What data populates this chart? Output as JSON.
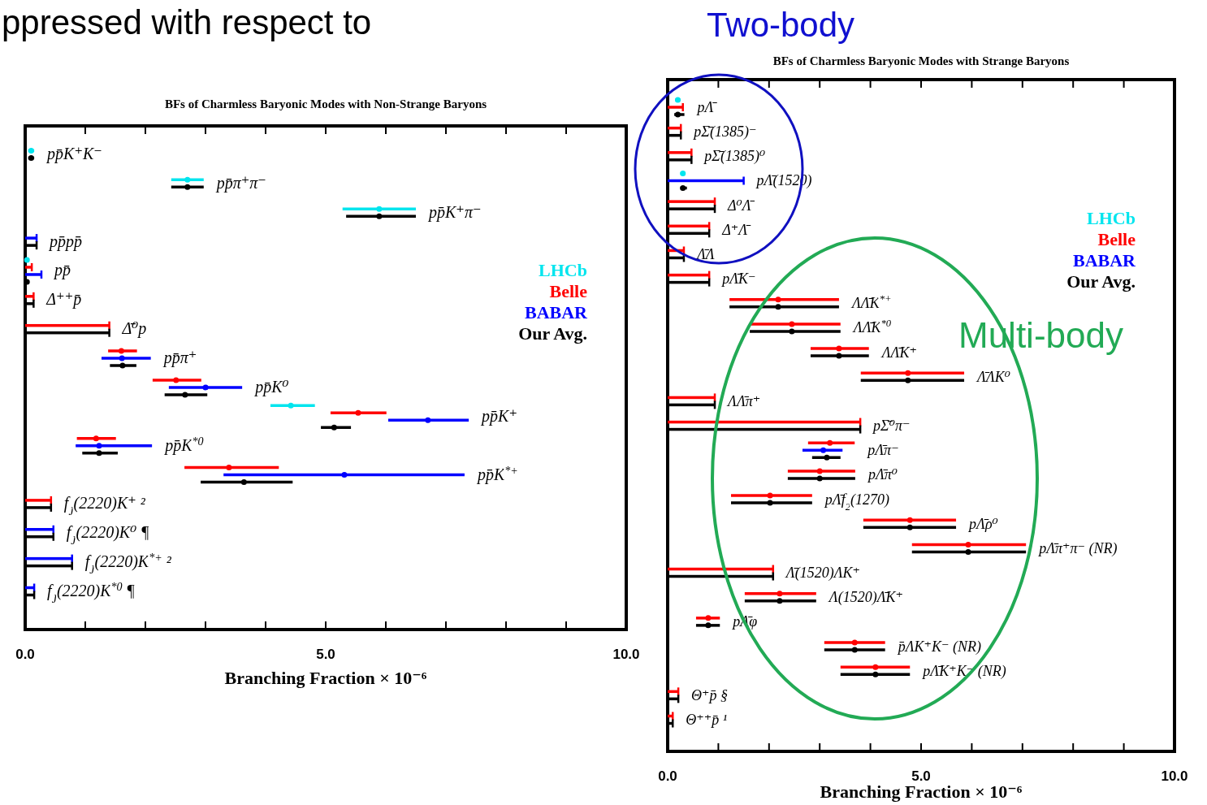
{
  "chart_data": [
    {
      "type": "scatter",
      "orientation": "horizontal",
      "title": "BFs of Charmless Baryonic Modes with Non-Strange Baryons",
      "xlabel": "Branching Fraction × 10⁻⁶",
      "annotations": [
        "ppressed with respect to"
      ],
      "legend": "right",
      "tick_labels": "x",
      "xlim": [
        0,
        10
      ],
      "xticks": [
        {
          "value": 0,
          "label": "0.0"
        },
        {
          "value": 1,
          "label": null
        },
        {
          "value": 2,
          "label": null
        },
        {
          "value": 3,
          "label": null
        },
        {
          "value": 4,
          "label": null
        },
        {
          "value": 5,
          "label": "5.0"
        },
        {
          "value": 6,
          "label": null
        },
        {
          "value": 7,
          "label": null
        },
        {
          "value": 8,
          "label": null
        },
        {
          "value": 9,
          "label": null
        },
        {
          "value": 10,
          "label": "10.0"
        }
      ],
      "categories": [
        "pp̄K⁺K⁻",
        "pp̄π⁺π⁻",
        "pp̄K⁺π⁻",
        "pp̄pp̄",
        "pp̄",
        "Δ⁺⁺p̄",
        "Δ̄⁰p",
        "pp̄π⁺",
        "pp̄K⁰",
        "pp̄K⁺",
        "pp̄K$^{*0}$",
        "pp̄K$^{*+}$",
        "f$_{J}$(2220)K⁺ ²",
        "f$_{J}$(2220)K⁰ ¶",
        "f$_{J}$(2220)K$^{*+}$ ²",
        "f$_{J}$(2220)K$^{*0}$ ¶"
      ],
      "series": [
        {
          "name": "LHCb",
          "color": "#00e5ee",
          "values": [
            0.1,
            2.7,
            5.89,
            null,
            0.03,
            null,
            null,
            null,
            null,
            4.42,
            null,
            null,
            null,
            null,
            null,
            null
          ],
          "errors": [
            [
              0.05,
              0.15
            ],
            [
              2.43,
              2.97
            ],
            [
              5.28,
              6.5
            ],
            null,
            [
              0.01,
              0.05
            ],
            null,
            null,
            null,
            null,
            [
              4.08,
              4.82
            ],
            null,
            null,
            null,
            null,
            null,
            null
          ]
        },
        {
          "name": "Belle",
          "color": "#ff0000",
          "values": [
            null,
            null,
            null,
            null,
            null,
            null,
            null,
            1.6,
            2.51,
            5.54,
            1.18,
            3.39,
            null,
            null,
            null,
            null
          ],
          "errors": [
            null,
            null,
            null,
            null,
            null,
            null,
            null,
            [
              1.38,
              1.86
            ],
            [
              2.12,
              2.93
            ],
            [
              5.08,
              6.01
            ],
            [
              0.86,
              1.51
            ],
            [
              2.65,
              4.22
            ],
            null,
            null,
            null,
            null
          ]
        },
        {
          "type": "bar",
          "color": "#ff0000",
          "values": [
            null,
            null,
            null,
            null,
            0.11,
            0.14,
            1.4,
            null,
            null,
            null,
            null,
            null,
            0.43,
            null,
            null,
            null
          ]
        },
        {
          "name": "BABAR",
          "color": "#0000ff",
          "values": [
            null,
            null,
            null,
            null,
            null,
            null,
            null,
            1.61,
            3.0,
            6.7,
            1.23,
            5.31,
            null,
            null,
            null,
            null
          ],
          "errors": [
            null,
            null,
            null,
            null,
            null,
            null,
            null,
            [
              1.27,
              2.09
            ],
            [
              2.39,
              3.61
            ],
            [
              6.04,
              7.38
            ],
            [
              0.84,
              2.11
            ],
            [
              3.3,
              7.31
            ],
            null,
            null,
            null,
            null
          ]
        },
        {
          "type": "bar",
          "color": "#0000ff",
          "values": [
            null,
            null,
            null,
            0.19,
            0.27,
            null,
            null,
            null,
            null,
            null,
            null,
            null,
            null,
            0.47,
            0.78,
            0.15
          ]
        },
        {
          "name": "Our Avg.",
          "color": "#000000",
          "values": [
            0.1,
            2.7,
            5.89,
            null,
            0.03,
            null,
            null,
            1.62,
            2.66,
            5.14,
            1.23,
            3.64,
            null,
            null,
            null,
            null
          ],
          "errors": [
            [
              0.05,
              0.15
            ],
            [
              2.43,
              2.97
            ],
            [
              5.34,
              6.5
            ],
            null,
            [
              0.01,
              0.05
            ],
            null,
            null,
            [
              1.41,
              1.85
            ],
            [
              2.32,
              3.03
            ],
            [
              4.92,
              5.42
            ],
            [
              0.95,
              1.54
            ],
            [
              2.92,
              4.45
            ],
            null,
            null,
            null,
            null
          ]
        },
        {
          "type": "bar",
          "color": "#000000",
          "values": [
            null,
            null,
            null,
            0.19,
            null,
            0.14,
            1.4,
            null,
            null,
            null,
            null,
            null,
            0.43,
            0.47,
            0.78,
            0.15
          ]
        }
      ]
    },
    {
      "type": "scatter",
      "orientation": "horizontal",
      "title": "BFs of Charmless Baryonic Modes with Strange Baryons",
      "xlabel": "Branching Fraction × 10⁻⁶",
      "annotations": [
        "Two-body",
        "Multi-body"
      ],
      "legend": "right",
      "tick_labels": "x",
      "xlim": [
        0,
        10
      ],
      "xticks": [
        {
          "value": 0,
          "label": "0.0"
        },
        {
          "value": 1,
          "label": null
        },
        {
          "value": 2,
          "label": null
        },
        {
          "value": 3,
          "label": null
        },
        {
          "value": 4,
          "label": null
        },
        {
          "value": 5,
          "label": "5.0"
        },
        {
          "value": 6,
          "label": null
        },
        {
          "value": 7,
          "label": null
        },
        {
          "value": 8,
          "label": null
        },
        {
          "value": 9,
          "label": null
        },
        {
          "value": 10,
          "label": "10.0"
        }
      ],
      "categories": [
        "pΛ̄",
        "pΣ̄(1385)⁻",
        "pΣ̄(1385)⁰",
        "pΛ̄(1520)",
        "Δ⁰Λ̄",
        "Δ⁺Λ̄",
        "Λ̄Λ",
        "pΛ̄K⁻",
        "ΛΛ̄K$^{*+}$",
        "ΛΛ̄K$^{*0}$",
        "ΛΛ̄K⁺",
        "Λ̄ΛK⁰",
        "ΛΛ̄π⁺",
        "pΣ̄⁰π⁻",
        "pΛ̄π⁻",
        "pΛ̄π⁰",
        "pΛ̄f$_{2}$(1270)",
        "pΛ̄ρ⁰",
        "pΛ̄π⁺π⁻ (NR)",
        "Λ̄(1520)ΛK⁺",
        "Λ(1520)Λ̄K⁺",
        "pΛ̄φ",
        "p̄ΛK⁺K⁻ (NR)",
        "pΛ̄K⁺K⁻ (NR)",
        "Θ⁺p̄ §",
        "Θ⁺⁺p̄ ¹"
      ],
      "series": [
        {
          "name": "LHCb",
          "color": "#00e5ee",
          "values": [
            0.2,
            null,
            null,
            0.3,
            null,
            null,
            null,
            null,
            null,
            null,
            null,
            null,
            null,
            null,
            null,
            null,
            null,
            null,
            null,
            null,
            null,
            null,
            null,
            null,
            null,
            null
          ],
          "errors": [
            [
              0.15,
              0.25
            ],
            null,
            null,
            [
              0.25,
              0.35
            ],
            null,
            null,
            null,
            null,
            null,
            null,
            null,
            null,
            null,
            null,
            null,
            null,
            null,
            null,
            null,
            null,
            null,
            null,
            null,
            null,
            null,
            null
          ]
        },
        {
          "name": "Belle",
          "color": "#ff0000",
          "values": [
            null,
            null,
            null,
            null,
            null,
            null,
            null,
            null,
            2.18,
            2.45,
            3.38,
            4.74,
            null,
            null,
            3.2,
            3.0,
            2.02,
            4.78,
            5.93,
            null,
            2.21,
            0.8,
            3.69,
            4.1,
            null,
            null
          ],
          "errors": [
            null,
            null,
            null,
            null,
            null,
            null,
            null,
            null,
            [
              1.22,
              3.38
            ],
            [
              1.62,
              3.41
            ],
            [
              2.82,
              3.97
            ],
            [
              3.81,
              5.85
            ],
            null,
            null,
            [
              2.77,
              3.69
            ],
            [
              2.37,
              3.7
            ],
            [
              1.25,
              2.85
            ],
            [
              3.86,
              5.69
            ],
            [
              4.82,
              7.07
            ],
            null,
            [
              1.52,
              2.93
            ],
            [
              0.56,
              1.03
            ],
            [
              3.09,
              4.29
            ],
            [
              3.41,
              4.78
            ],
            null,
            null
          ]
        },
        {
          "type": "bar",
          "color": "#ff0000",
          "values": [
            0.3,
            0.26,
            0.47,
            null,
            0.93,
            0.82,
            0.32,
            0.82,
            null,
            null,
            null,
            null,
            0.93,
            3.8,
            null,
            null,
            null,
            null,
            null,
            2.08,
            null,
            null,
            null,
            null,
            0.21,
            0.1
          ]
        },
        {
          "name": "BABAR",
          "color": "#0000ff",
          "values": [
            null,
            null,
            null,
            null,
            null,
            null,
            null,
            null,
            null,
            null,
            null,
            null,
            null,
            null,
            3.07,
            null,
            null,
            null,
            null,
            null,
            null,
            null,
            null,
            null,
            null,
            null
          ],
          "errors": [
            null,
            null,
            null,
            null,
            null,
            null,
            null,
            null,
            null,
            null,
            null,
            null,
            null,
            null,
            [
              2.66,
              3.45
            ],
            null,
            null,
            null,
            null,
            null,
            null,
            null,
            null,
            null,
            null,
            null
          ]
        },
        {
          "type": "bar",
          "color": "#0000ff",
          "values": [
            null,
            null,
            null,
            1.5,
            null,
            null,
            null,
            null,
            null,
            null,
            null,
            null,
            null,
            null,
            null,
            null,
            null,
            null,
            null,
            null,
            null,
            null,
            null,
            null,
            null,
            null
          ]
        },
        {
          "name": "Our Avg.",
          "color": "#000000",
          "values": [
            0.2,
            null,
            null,
            0.3,
            null,
            null,
            null,
            null,
            2.18,
            2.45,
            3.38,
            4.74,
            null,
            null,
            3.14,
            3.0,
            2.02,
            4.78,
            5.93,
            null,
            2.21,
            0.8,
            3.69,
            4.1,
            null,
            null
          ],
          "errors": [
            [
              0.13,
              0.33
            ],
            null,
            null,
            [
              0.25,
              0.38
            ],
            null,
            null,
            null,
            null,
            [
              1.22,
              3.38
            ],
            [
              1.62,
              3.41
            ],
            [
              2.82,
              3.97
            ],
            [
              3.81,
              5.85
            ],
            null,
            null,
            [
              2.85,
              3.41
            ],
            [
              2.37,
              3.7
            ],
            [
              1.25,
              2.85
            ],
            [
              3.86,
              5.69
            ],
            [
              4.82,
              7.07
            ],
            null,
            [
              1.52,
              2.93
            ],
            [
              0.56,
              1.03
            ],
            [
              3.09,
              4.29
            ],
            [
              3.41,
              4.78
            ],
            null,
            null
          ]
        },
        {
          "type": "bar",
          "color": "#000000",
          "values": [
            null,
            0.26,
            0.47,
            null,
            0.93,
            0.82,
            0.32,
            0.82,
            null,
            null,
            null,
            null,
            0.93,
            3.8,
            null,
            null,
            null,
            null,
            null,
            2.08,
            null,
            null,
            null,
            null,
            0.21,
            0.1
          ]
        }
      ]
    }
  ]
}
